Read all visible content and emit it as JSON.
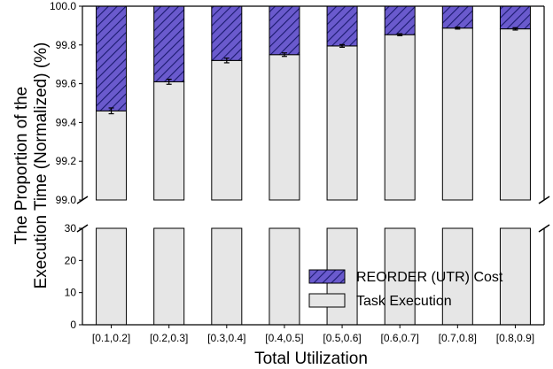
{
  "chart_data": {
    "type": "bar",
    "stacked": true,
    "broken_y_axis": true,
    "categories": [
      "[0.1,0.2]",
      "[0.2,0.3]",
      "[0.3,0.4]",
      "[0.4,0.5]",
      "[0.5,0.6]",
      "[0.6,0.7]",
      "[0.7,0.8]",
      "[0.8,0.9]"
    ],
    "series": [
      {
        "name": "Task Execution",
        "values": [
          99.46,
          99.61,
          99.72,
          99.75,
          99.795,
          99.853,
          99.887,
          99.883
        ],
        "error": [
          0.015,
          0.013,
          0.012,
          0.009,
          0.007,
          0.005,
          0.005,
          0.006
        ],
        "color": "#e6e6e6"
      },
      {
        "name": "REORDER (UTR) Cost",
        "values": [
          0.54,
          0.39,
          0.28,
          0.25,
          0.205,
          0.147,
          0.113,
          0.117
        ],
        "color": "#6a5acd",
        "hatch": true
      }
    ],
    "xlabel": "Total Utilization",
    "ylabel": "The Proportion of the Execution Time (Normalized) (%)",
    "ylabel_lines": [
      "The Proportion of the",
      "Execution Time (Normalized) (%)"
    ],
    "ylim_upper": [
      99.0,
      100.0
    ],
    "yticks_upper": [
      "99.0",
      "99.2",
      "99.4",
      "99.6",
      "99.8",
      "100.0"
    ],
    "ylim_lower": [
      0,
      30
    ],
    "yticks_lower": [
      "0",
      "10",
      "20",
      "30"
    ],
    "legend_position": "lower-right",
    "grid": false
  }
}
